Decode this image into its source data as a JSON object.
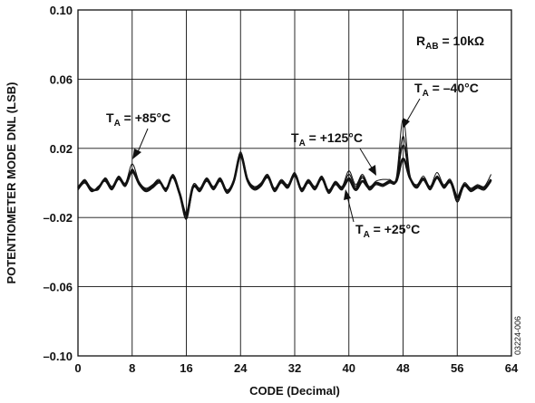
{
  "chart_data": {
    "type": "line",
    "xlabel": "CODE (Decimal)",
    "ylabel": "POTENTIOMETER MODE DNL (LSB)",
    "xlim": [
      0,
      64
    ],
    "ylim": [
      -0.1,
      0.1
    ],
    "xticks": [
      0,
      8,
      16,
      24,
      32,
      40,
      48,
      56,
      64
    ],
    "yticks": [
      -0.1,
      -0.06,
      -0.02,
      0.02,
      0.06,
      0.1
    ],
    "ytick_labels": [
      "–0.10",
      "–0.06",
      "–0.02",
      "0.02",
      "0.06",
      "0.10"
    ],
    "grid": true,
    "figure_id": "03224-006",
    "annotations": {
      "rab": {
        "main": "R",
        "sub": "AB",
        "rest": " = 10kΩ"
      },
      "t85": {
        "main": "T",
        "sub": "A",
        "rest": " = +85°C"
      },
      "t125": {
        "main": "T",
        "sub": "A",
        "rest": " = +125°C"
      },
      "tm40": {
        "main": "T",
        "sub": "A",
        "rest": " = –40°C"
      },
      "t25": {
        "main": "T",
        "sub": "A",
        "rest": " = +25°C"
      }
    },
    "x": [
      0,
      1,
      2,
      3,
      4,
      5,
      6,
      7,
      8,
      9,
      10,
      11,
      12,
      13,
      14,
      15,
      16,
      17,
      18,
      19,
      20,
      21,
      22,
      23,
      24,
      25,
      26,
      27,
      28,
      29,
      30,
      31,
      32,
      33,
      34,
      35,
      36,
      37,
      38,
      39,
      40,
      41,
      42,
      43,
      44,
      45,
      46,
      47,
      48,
      49,
      50,
      51,
      52,
      53,
      54,
      55,
      56,
      57,
      58,
      59,
      60,
      61
    ],
    "series": [
      {
        "values": [
          -0.003,
          0.002,
          -0.004,
          -0.003,
          0.002,
          -0.003,
          0.003,
          -0.001,
          0.008,
          0.0,
          -0.004,
          -0.002,
          0.001,
          -0.004,
          0.004,
          -0.006,
          -0.02,
          -0.002,
          -0.004,
          0.002,
          -0.003,
          0.002,
          -0.005,
          0.001,
          0.017,
          0.002,
          -0.003,
          -0.001,
          0.004,
          -0.004,
          0.001,
          -0.002,
          0.005,
          -0.004,
          0.001,
          -0.003,
          0.003,
          -0.005,
          0.0,
          -0.003,
          0.005,
          -0.002,
          0.004,
          -0.003,
          0.0,
          -0.001,
          0.001,
          0.002,
          0.027,
          0.004,
          -0.002,
          0.003,
          -0.003,
          0.004,
          -0.002,
          0.001,
          -0.01,
          -0.001,
          -0.004,
          -0.002,
          -0.003,
          0.002
        ]
      },
      {
        "values": [
          -0.002,
          0.001,
          -0.003,
          -0.004,
          0.003,
          -0.002,
          0.004,
          0.0,
          0.011,
          0.001,
          -0.003,
          -0.001,
          0.002,
          -0.005,
          0.005,
          -0.005,
          -0.019,
          -0.001,
          -0.003,
          0.003,
          -0.002,
          0.003,
          -0.004,
          0.002,
          0.018,
          0.003,
          -0.002,
          0.0,
          0.005,
          -0.003,
          0.002,
          -0.001,
          0.006,
          -0.003,
          0.002,
          -0.002,
          0.004,
          -0.004,
          0.001,
          -0.002,
          0.007,
          -0.001,
          0.005,
          -0.002,
          0.001,
          0.002,
          0.002,
          0.003,
          0.037,
          0.005,
          -0.001,
          0.004,
          -0.002,
          0.006,
          -0.001,
          0.002,
          -0.009,
          0.0,
          -0.003,
          -0.001,
          -0.002,
          0.005
        ]
      },
      {
        "values": [
          -0.004,
          0.0,
          -0.005,
          -0.002,
          0.001,
          -0.004,
          0.002,
          -0.002,
          0.006,
          -0.001,
          -0.005,
          -0.003,
          0.0,
          -0.003,
          0.003,
          -0.007,
          -0.021,
          -0.003,
          -0.005,
          0.001,
          -0.004,
          0.001,
          -0.006,
          0.0,
          0.015,
          0.001,
          -0.004,
          -0.002,
          0.003,
          -0.005,
          0.0,
          -0.003,
          0.004,
          -0.005,
          0.0,
          -0.004,
          0.002,
          -0.006,
          -0.001,
          -0.004,
          0.003,
          -0.003,
          0.003,
          -0.004,
          -0.001,
          -0.002,
          0.0,
          0.001,
          0.022,
          0.003,
          -0.003,
          0.002,
          -0.004,
          0.003,
          -0.003,
          0.0,
          -0.011,
          -0.002,
          -0.005,
          -0.003,
          -0.004,
          0.001
        ]
      },
      {
        "values": [
          -0.003,
          0.001,
          -0.004,
          -0.003,
          0.002,
          -0.003,
          0.003,
          -0.001,
          0.007,
          0.0,
          -0.004,
          -0.002,
          0.001,
          -0.004,
          0.004,
          -0.006,
          -0.018,
          -0.002,
          -0.004,
          0.002,
          -0.003,
          0.002,
          -0.005,
          0.001,
          0.016,
          0.002,
          -0.003,
          -0.001,
          0.004,
          -0.004,
          0.001,
          -0.002,
          0.005,
          -0.004,
          0.001,
          -0.003,
          0.003,
          -0.005,
          0.0,
          -0.003,
          0.002,
          -0.004,
          0.001,
          -0.003,
          0.0,
          -0.001,
          0.001,
          0.001,
          0.014,
          0.003,
          -0.002,
          0.002,
          -0.003,
          0.003,
          -0.002,
          0.001,
          -0.008,
          -0.001,
          -0.004,
          -0.002,
          -0.003,
          0.002
        ]
      }
    ]
  }
}
